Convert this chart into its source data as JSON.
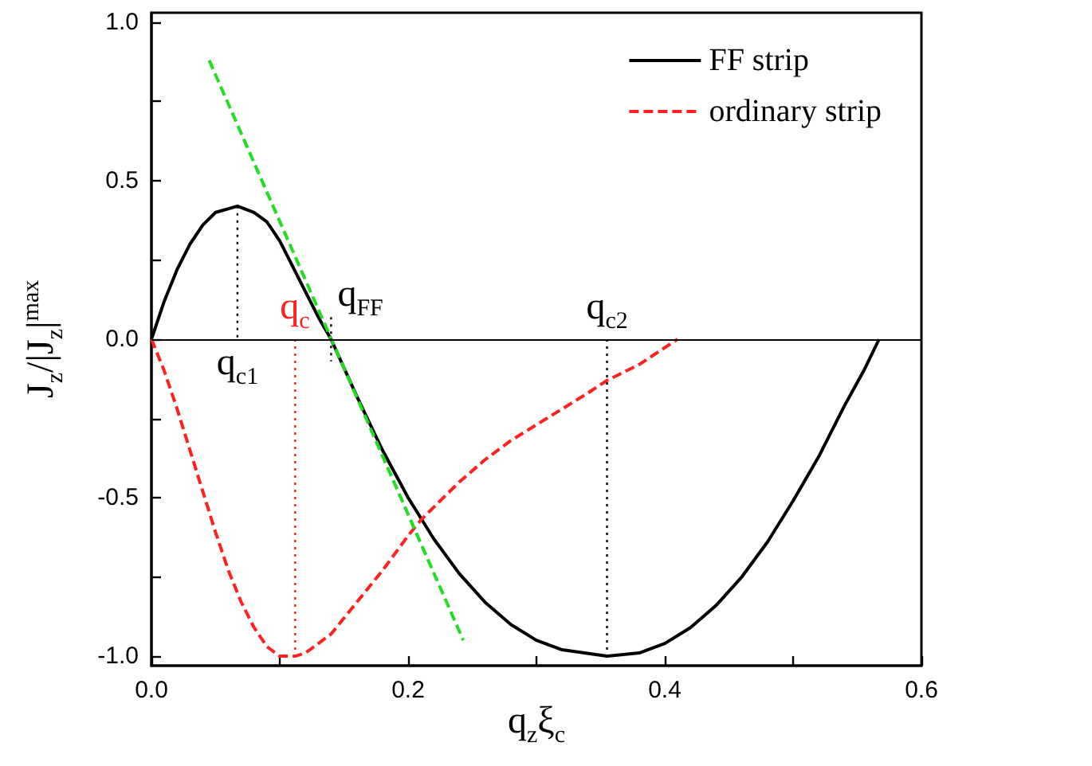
{
  "chart_data": {
    "type": "line",
    "xlabel": "q$_{z}$ξ$_{c}$",
    "ylabel": "J$_{z}$/|J$_{z}$|$^{max}$",
    "xlim": [
      0,
      0.6
    ],
    "ylim": [
      -1.03,
      1.03
    ],
    "xticks": [
      {
        "value": 0,
        "label": "0.0"
      },
      {
        "value": 0.1,
        "label": null
      },
      {
        "value": 0.2,
        "label": "0.2"
      },
      {
        "value": 0.3,
        "label": null
      },
      {
        "value": 0.4,
        "label": "0.4"
      },
      {
        "value": 0.5,
        "label": null
      },
      {
        "value": 0.6,
        "label": "0.6"
      }
    ],
    "yticks": [
      {
        "value": -1,
        "label": "-1.0"
      },
      {
        "value": -0.75,
        "label": null
      },
      {
        "value": -0.5,
        "label": "-0.5"
      },
      {
        "value": -0.25,
        "label": null
      },
      {
        "value": 0,
        "label": "0.0"
      },
      {
        "value": 0.25,
        "label": null
      },
      {
        "value": 0.5,
        "label": "0.5"
      },
      {
        "value": 0.75,
        "label": null
      },
      {
        "value": 1,
        "label": "1.0"
      }
    ],
    "grid": false,
    "legend": "top right",
    "marker": "none",
    "series": [
      {
        "name": "FF strip",
        "color": "#000000",
        "line_style": "solid",
        "x": [
          0,
          0.01,
          0.02,
          0.03,
          0.04,
          0.05,
          0.067,
          0.08,
          0.09,
          0.1,
          0.11,
          0.12,
          0.13,
          0.14,
          0.15,
          0.16,
          0.18,
          0.2,
          0.22,
          0.24,
          0.26,
          0.28,
          0.3,
          0.32,
          0.355,
          0.38,
          0.4,
          0.42,
          0.44,
          0.46,
          0.48,
          0.5,
          0.52,
          0.54,
          0.555,
          0.567
        ],
        "values": [
          0,
          0.12,
          0.22,
          0.3,
          0.36,
          0.4,
          0.42,
          0.4,
          0.37,
          0.31,
          0.23,
          0.15,
          0.07,
          0,
          -0.09,
          -0.18,
          -0.35,
          -0.5,
          -0.63,
          -0.74,
          -0.83,
          -0.9,
          -0.95,
          -0.98,
          -1,
          -0.99,
          -0.96,
          -0.91,
          -0.84,
          -0.75,
          -0.64,
          -0.51,
          -0.37,
          -0.21,
          -0.1,
          0
        ]
      },
      {
        "name": "ordinary strip",
        "color": "#ff2020",
        "line_style": "dashed",
        "x": [
          0,
          0.01,
          0.02,
          0.03,
          0.04,
          0.05,
          0.06,
          0.07,
          0.08,
          0.09,
          0.1,
          0.112,
          0.12,
          0.14,
          0.16,
          0.18,
          0.2,
          0.21,
          0.24,
          0.26,
          0.28,
          0.3,
          0.32,
          0.34,
          0.355,
          0.38,
          0.41
        ],
        "values": [
          0,
          -0.1,
          -0.22,
          -0.35,
          -0.48,
          -0.61,
          -0.73,
          -0.83,
          -0.91,
          -0.97,
          -1,
          -1,
          -0.99,
          -0.93,
          -0.83,
          -0.73,
          -0.62,
          -0.57,
          -0.45,
          -0.38,
          -0.32,
          -0.27,
          -0.22,
          -0.17,
          -0.13,
          -0.08,
          0
        ]
      },
      {
        "color": "#22dd22",
        "line_style": "dashed",
        "x": [
          0.045,
          0.243
        ],
        "values": [
          0.88,
          -0.95
        ]
      },
      {
        "color": "#000000",
        "line_style": "dotted",
        "x": [
          0.067,
          0.067
        ],
        "values": [
          0.42,
          0
        ]
      },
      {
        "color": "#ff2020",
        "line_style": "dotted",
        "x": [
          0.112,
          0.112
        ],
        "values": [
          0,
          -1
        ]
      },
      {
        "color": "#000000",
        "line_style": "dotted",
        "x": [
          0.14,
          0.14
        ],
        "values": [
          0.07,
          -0.07
        ]
      },
      {
        "color": "#000000",
        "line_style": "dotted",
        "x": [
          0.355,
          0.355
        ],
        "values": [
          0,
          -1
        ]
      }
    ],
    "ref_lines": [
      {
        "axis": "y",
        "value": 0,
        "color": "#000000"
      }
    ],
    "annotations": [
      {
        "text": "q$_{c1}$",
        "x": 0.067,
        "y": 0
      },
      {
        "text": "q$_{c}$",
        "x": 0.112,
        "y": 0
      },
      {
        "text": "q$_{FF}$",
        "x": 0.14,
        "y": 0.07
      },
      {
        "text": "q$_{c2}$",
        "x": 0.355,
        "y": 0
      }
    ]
  }
}
